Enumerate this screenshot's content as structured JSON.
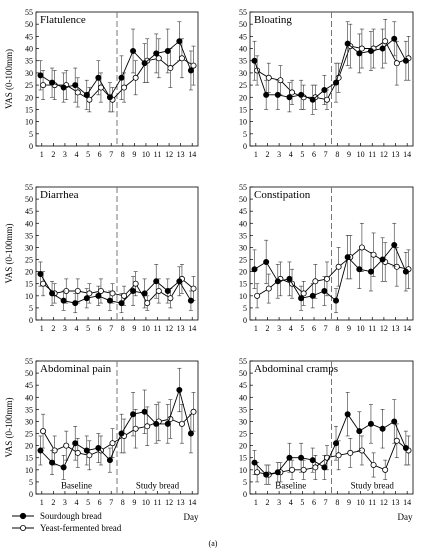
{
  "figure_caption": "(a)",
  "legend": {
    "sourdough": "Sourdough bread",
    "yeast": "Yeast-fermented bread"
  },
  "x_axis_label": "Day",
  "chart_data": [
    {
      "type": "line",
      "title": "Flatulence",
      "ylabel": "VAS (0-100mm)",
      "xlabel": "",
      "ylim": [
        0,
        55
      ],
      "y_ticks": [
        0,
        5,
        10,
        15,
        20,
        25,
        30,
        35,
        40,
        45,
        50,
        55
      ],
      "x": [
        1,
        2,
        3,
        4,
        5,
        6,
        7,
        8,
        9,
        10,
        11,
        12,
        13,
        14
      ],
      "phase_divider_x": 7.5,
      "series": [
        {
          "name": "Sourdough bread",
          "values": [
            29,
            26,
            24,
            25,
            21,
            28,
            20,
            28,
            39,
            34,
            38,
            39,
            43,
            31
          ],
          "err": [
            6,
            6,
            6,
            7,
            6,
            7,
            6,
            9,
            9,
            8,
            8,
            9,
            8,
            8
          ]
        },
        {
          "name": "Yeast-fermented bread",
          "values": [
            25,
            25,
            25,
            22,
            19,
            24,
            19,
            24,
            28,
            35,
            36,
            32,
            36,
            33
          ],
          "err": [
            6,
            6,
            6,
            6,
            5,
            6,
            5,
            6,
            7,
            9,
            8,
            8,
            8,
            8
          ]
        }
      ]
    },
    {
      "type": "line",
      "title": "Bloating",
      "ylabel": "",
      "xlabel": "",
      "ylim": [
        0,
        55
      ],
      "y_ticks": [
        0,
        5,
        10,
        15,
        20,
        25,
        30,
        35,
        40,
        45,
        50,
        55
      ],
      "x": [
        1,
        2,
        3,
        4,
        5,
        6,
        7,
        8,
        9,
        10,
        11,
        12,
        13,
        14
      ],
      "phase_divider_x": 7.5,
      "series": [
        {
          "name": "Sourdough bread",
          "values": [
            35,
            21,
            21,
            20,
            21,
            19,
            23,
            26,
            42,
            38,
            39,
            40,
            44,
            35
          ],
          "err": [
            8,
            6,
            6,
            6,
            6,
            6,
            6,
            8,
            9,
            8,
            8,
            8,
            7,
            8
          ]
        },
        {
          "name": "Yeast-fermented bread",
          "values": [
            31,
            28,
            27,
            22,
            20,
            20,
            19,
            28,
            41,
            40,
            40,
            43,
            34,
            36
          ],
          "err": [
            6,
            6,
            6,
            5,
            5,
            5,
            4,
            6,
            9,
            8,
            8,
            9,
            9,
            9
          ]
        }
      ]
    },
    {
      "type": "line",
      "title": "Diarrhea",
      "ylabel": "VAS (0-100mm)",
      "xlabel": "",
      "ylim": [
        0,
        55
      ],
      "y_ticks": [
        0,
        5,
        10,
        15,
        20,
        25,
        30,
        35,
        40,
        45,
        50,
        55
      ],
      "x": [
        1,
        2,
        3,
        4,
        5,
        6,
        7,
        8,
        9,
        10,
        11,
        12,
        13,
        14
      ],
      "phase_divider_x": 7.5,
      "series": [
        {
          "name": "Sourdough bread",
          "values": [
            19,
            11,
            8,
            7,
            9,
            10,
            8,
            7,
            12,
            11,
            16,
            12,
            16,
            8
          ],
          "err": [
            5,
            5,
            4,
            4,
            4,
            4,
            4,
            4,
            6,
            6,
            7,
            5,
            6,
            4
          ]
        },
        {
          "name": "Yeast-fermented bread",
          "values": [
            15,
            11,
            12,
            12,
            11,
            12,
            11,
            10,
            15,
            7,
            12,
            9,
            17,
            13
          ],
          "err": [
            5,
            4,
            5,
            5,
            4,
            5,
            4,
            4,
            5,
            3,
            5,
            4,
            6,
            5
          ]
        }
      ]
    },
    {
      "type": "line",
      "title": "Constipation",
      "ylabel": "",
      "xlabel": "",
      "ylim": [
        0,
        55
      ],
      "y_ticks": [
        0,
        5,
        10,
        15,
        20,
        25,
        30,
        35,
        40,
        45,
        50,
        55
      ],
      "x": [
        1,
        2,
        3,
        4,
        5,
        6,
        7,
        8,
        9,
        10,
        11,
        12,
        13,
        14
      ],
      "phase_divider_x": 7.5,
      "series": [
        {
          "name": "Sourdough bread",
          "values": [
            21,
            24,
            16,
            17,
            9,
            10,
            12,
            8,
            26,
            21,
            20,
            25,
            31,
            20
          ],
          "err": [
            8,
            9,
            7,
            7,
            5,
            5,
            6,
            5,
            9,
            8,
            8,
            9,
            9,
            8
          ]
        },
        {
          "name": "Yeast-fermented bread",
          "values": [
            10,
            13,
            17,
            15,
            11,
            16,
            17,
            22,
            26,
            30,
            27,
            24,
            22,
            21
          ],
          "err": [
            5,
            6,
            7,
            6,
            5,
            7,
            7,
            8,
            9,
            10,
            9,
            8,
            8,
            8
          ]
        }
      ]
    },
    {
      "type": "line",
      "title": "Abdominal pain",
      "ylabel": "VAS (0-100mm)",
      "xlabel": "",
      "ylim": [
        0,
        55
      ],
      "y_ticks": [
        0,
        5,
        10,
        15,
        20,
        25,
        30,
        35,
        40,
        45,
        50,
        55
      ],
      "x": [
        1,
        2,
        3,
        4,
        5,
        6,
        7,
        8,
        9,
        10,
        11,
        12,
        13,
        14
      ],
      "phase_divider_x": 7.5,
      "phase_labels": [
        "Baseline",
        "Study bread"
      ],
      "series": [
        {
          "name": "Sourdough bread",
          "values": [
            18,
            13,
            11,
            21,
            18,
            19,
            14,
            25,
            33,
            34,
            29,
            29,
            43,
            25
          ],
          "err": [
            6,
            5,
            5,
            7,
            6,
            6,
            5,
            8,
            9,
            9,
            8,
            8,
            9,
            8
          ]
        },
        {
          "name": "Yeast-fermented bread",
          "values": [
            26,
            18,
            20,
            17,
            16,
            18,
            21,
            24,
            27,
            28,
            30,
            31,
            29,
            34
          ],
          "err": [
            7,
            6,
            6,
            6,
            6,
            6,
            6,
            7,
            8,
            8,
            8,
            8,
            8,
            8
          ]
        }
      ]
    },
    {
      "type": "line",
      "title": "Abdominal cramps",
      "ylabel": "",
      "xlabel": "",
      "ylim": [
        0,
        55
      ],
      "y_ticks": [
        0,
        5,
        10,
        15,
        20,
        25,
        30,
        35,
        40,
        45,
        50,
        55
      ],
      "x": [
        1,
        2,
        3,
        4,
        5,
        6,
        7,
        8,
        9,
        10,
        11,
        12,
        13,
        14
      ],
      "phase_divider_x": 7.5,
      "phase_labels": [
        "Baseline",
        "Study bread"
      ],
      "series": [
        {
          "name": "Sourdough bread",
          "values": [
            13,
            8,
            9,
            15,
            15,
            14,
            11,
            21,
            33,
            26,
            29,
            27,
            30,
            19
          ],
          "err": [
            5,
            4,
            4,
            6,
            6,
            5,
            5,
            7,
            9,
            8,
            8,
            8,
            9,
            7
          ]
        },
        {
          "name": "Yeast-fermented bread",
          "values": [
            9,
            8,
            9,
            10,
            10,
            11,
            15,
            16,
            17,
            18,
            12,
            10,
            22,
            18
          ],
          "err": [
            4,
            4,
            4,
            4,
            4,
            5,
            5,
            6,
            6,
            6,
            5,
            4,
            7,
            6
          ]
        }
      ]
    }
  ]
}
